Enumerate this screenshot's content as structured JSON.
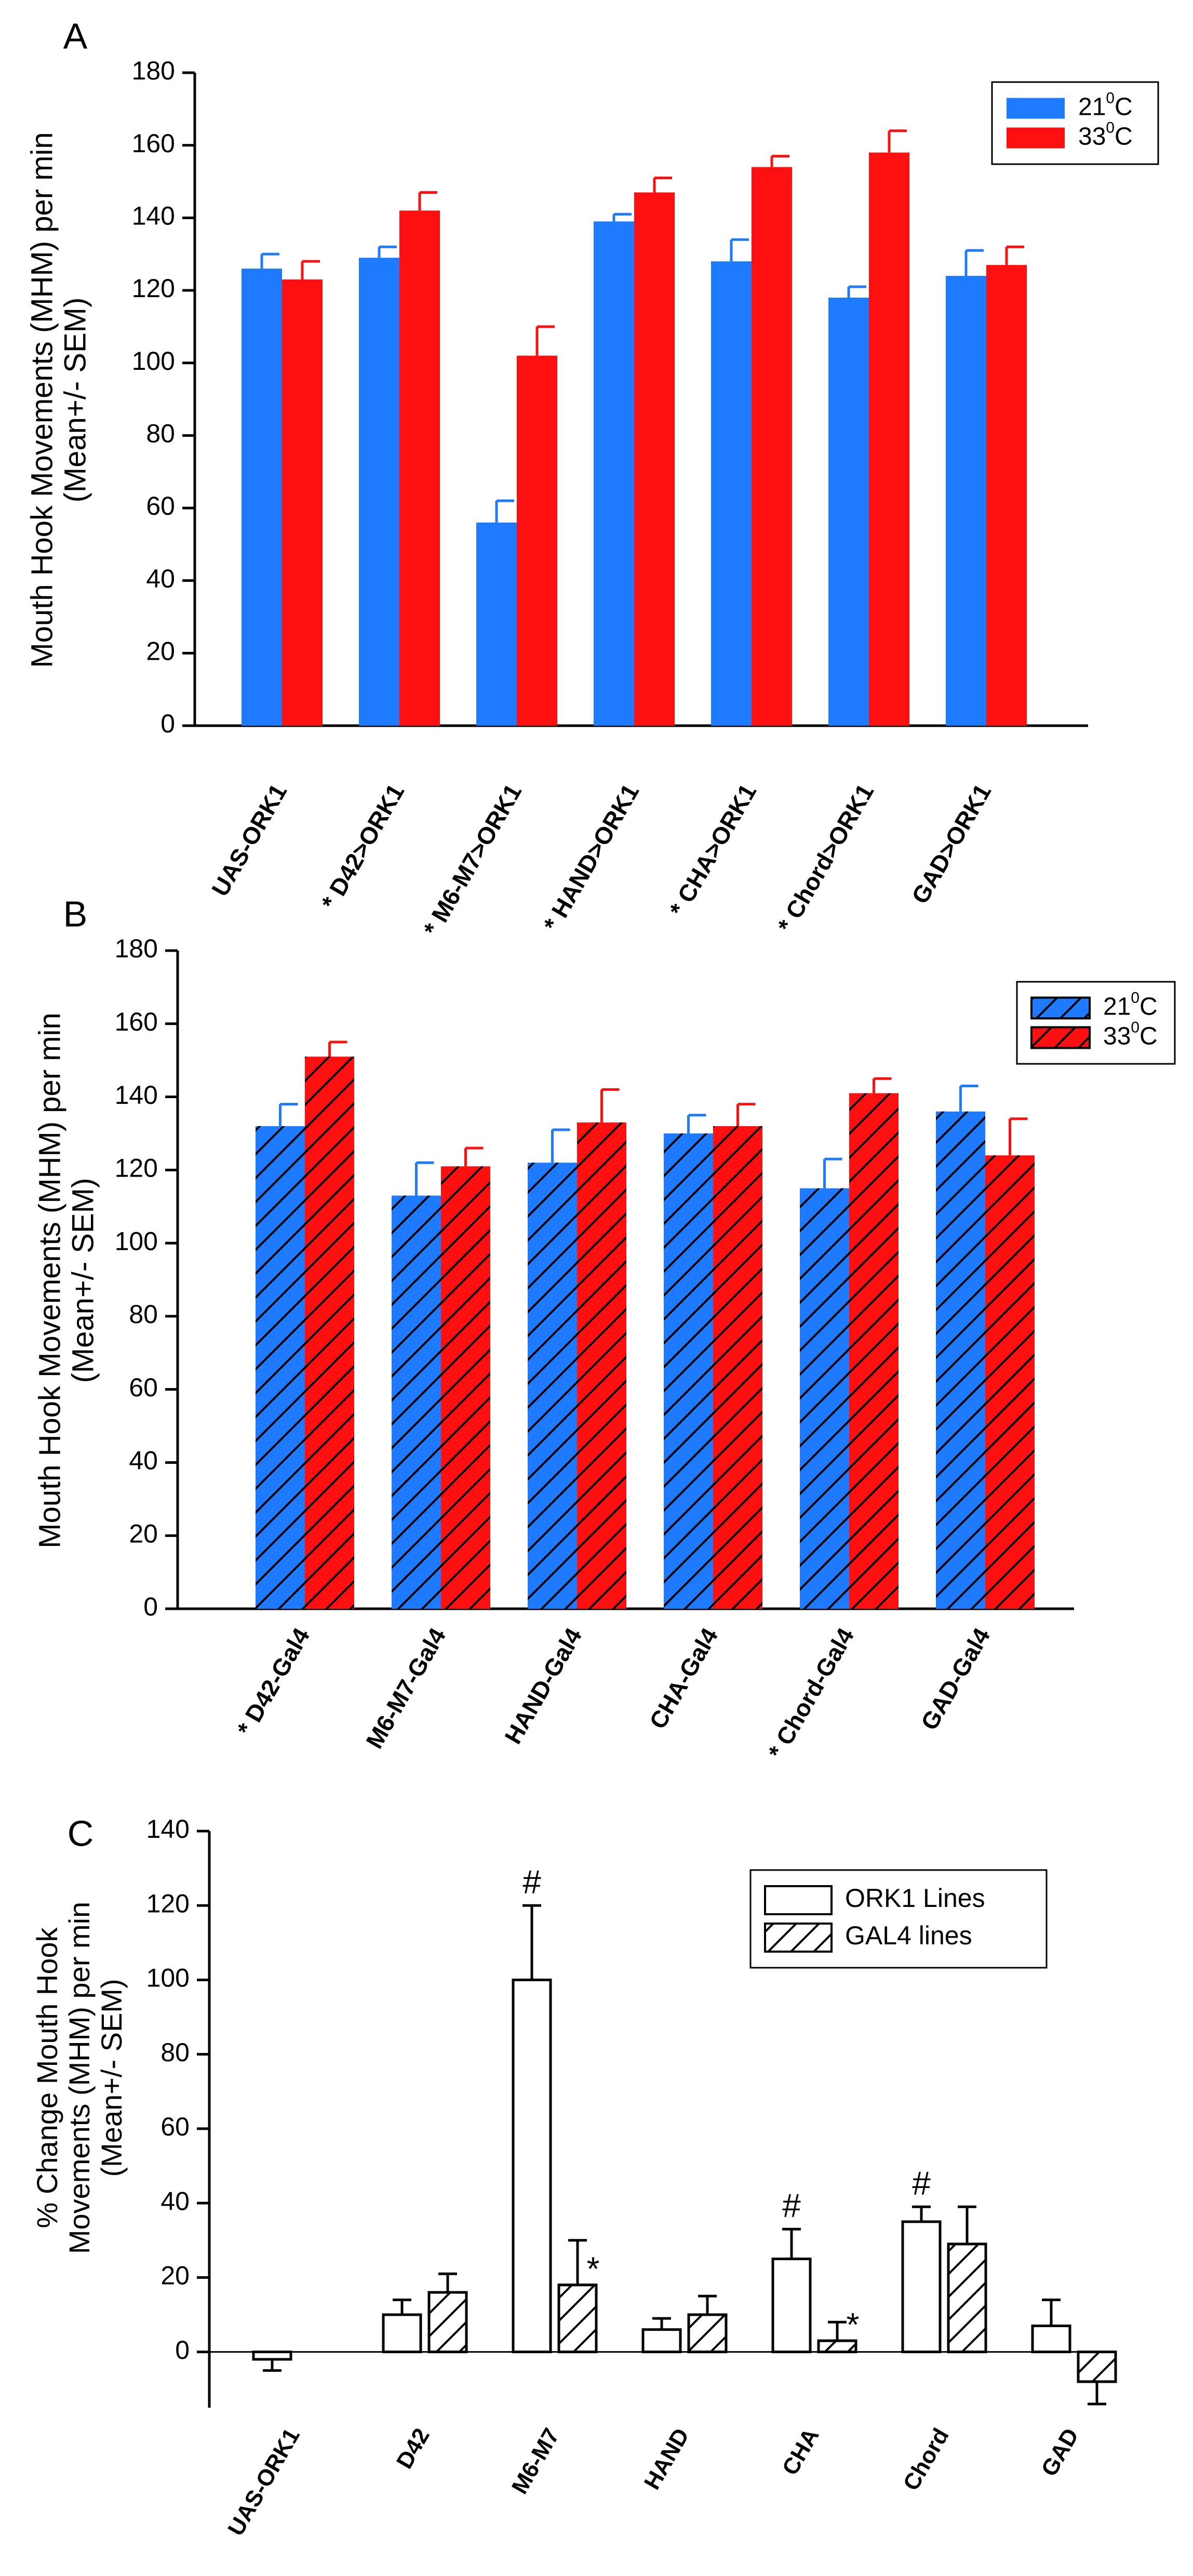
{
  "chart_data": [
    {
      "panel_label": "A",
      "type": "bar",
      "title": "",
      "xlabel": "",
      "ylabel_line1": "Mouth Hook Movements (MHM) per min",
      "ylabel_line2": "(Mean+/- SEM)",
      "ylim": [
        0,
        180
      ],
      "yticks": [
        0,
        20,
        40,
        60,
        80,
        100,
        120,
        140,
        160,
        180
      ],
      "categories": [
        "UAS-ORK1",
        "* D42>ORK1",
        "* M6-M7>ORK1",
        "* HAND>ORK1",
        "* CHA>ORK1",
        "* Chord>ORK1",
        "GAD>ORK1"
      ],
      "legend_position": "top-right",
      "series": [
        {
          "name": "21",
          "name_sup": "0",
          "name_suffix": "C",
          "color": "#1E7BFF",
          "values": [
            126,
            129,
            56,
            139,
            128,
            118,
            124
          ],
          "errors": [
            4,
            3,
            6,
            2,
            6,
            3,
            7
          ]
        },
        {
          "name": "33",
          "name_sup": "0",
          "name_suffix": "C",
          "color": "#FF1010",
          "values": [
            123,
            142,
            102,
            147,
            154,
            158,
            127
          ],
          "errors": [
            5,
            5,
            8,
            4,
            3,
            6,
            5
          ]
        }
      ]
    },
    {
      "panel_label": "B",
      "type": "bar",
      "title": "",
      "xlabel": "",
      "ylabel_line1": "Mouth Hook Movements (MHM) per min",
      "ylabel_line2": "(Mean+/- SEM)",
      "ylim": [
        0,
        180
      ],
      "yticks": [
        0,
        20,
        40,
        60,
        80,
        100,
        120,
        140,
        160,
        180
      ],
      "categories": [
        "* D42-Gal4",
        "M6-M7-Gal4",
        "HAND-Gal4",
        "CHA-Gal4",
        "* Chord-Gal4",
        "GAD-Gal4"
      ],
      "legend_position": "top-right",
      "series": [
        {
          "name": "21",
          "name_sup": "0",
          "name_suffix": "C",
          "color": "#1E7BFF",
          "hatched": true,
          "values": [
            132,
            113,
            122,
            130,
            115,
            136
          ],
          "errors": [
            6,
            9,
            9,
            5,
            8,
            7
          ]
        },
        {
          "name": "33",
          "name_sup": "0",
          "name_suffix": "C",
          "color": "#FF1010",
          "hatched": true,
          "values": [
            151,
            121,
            133,
            132,
            141,
            124
          ],
          "errors": [
            4,
            5,
            9,
            6,
            4,
            10
          ]
        }
      ]
    },
    {
      "panel_label": "C",
      "type": "bar",
      "title": "",
      "xlabel": "",
      "ylabel_line1": "% Change Mouth Hook",
      "ylabel_line2": "Movements (MHM) per min",
      "ylabel_line3": "(Mean+/- SEM)",
      "ylim": [
        -15,
        140
      ],
      "yticks": [
        0,
        20,
        40,
        60,
        80,
        100,
        120,
        140
      ],
      "categories": [
        "UAS-ORK1",
        "D42",
        "M6-M7",
        "HAND",
        "CHA",
        "Chord",
        "GAD"
      ],
      "legend_position": "top-right",
      "series": [
        {
          "name": "ORK1 Lines",
          "color": "#ffffff",
          "hatched": false,
          "values": [
            -2,
            10,
            100,
            6,
            25,
            35,
            7
          ],
          "errors": [
            3,
            4,
            20,
            3,
            8,
            4,
            7
          ]
        },
        {
          "name": "GAL4 lines",
          "color": "#ffffff",
          "hatched": true,
          "values": [
            null,
            16,
            18,
            10,
            3,
            29,
            -8
          ],
          "errors": [
            null,
            5,
            12,
            5,
            5,
            10,
            6
          ]
        }
      ],
      "annotations": [
        {
          "text": "#",
          "category": 2,
          "series": 0
        },
        {
          "text": "*",
          "category": 2,
          "series": 1
        },
        {
          "text": "#",
          "category": 4,
          "series": 0
        },
        {
          "text": "*",
          "category": 4,
          "series": 1
        },
        {
          "text": "#",
          "category": 5,
          "series": 0
        }
      ]
    }
  ]
}
